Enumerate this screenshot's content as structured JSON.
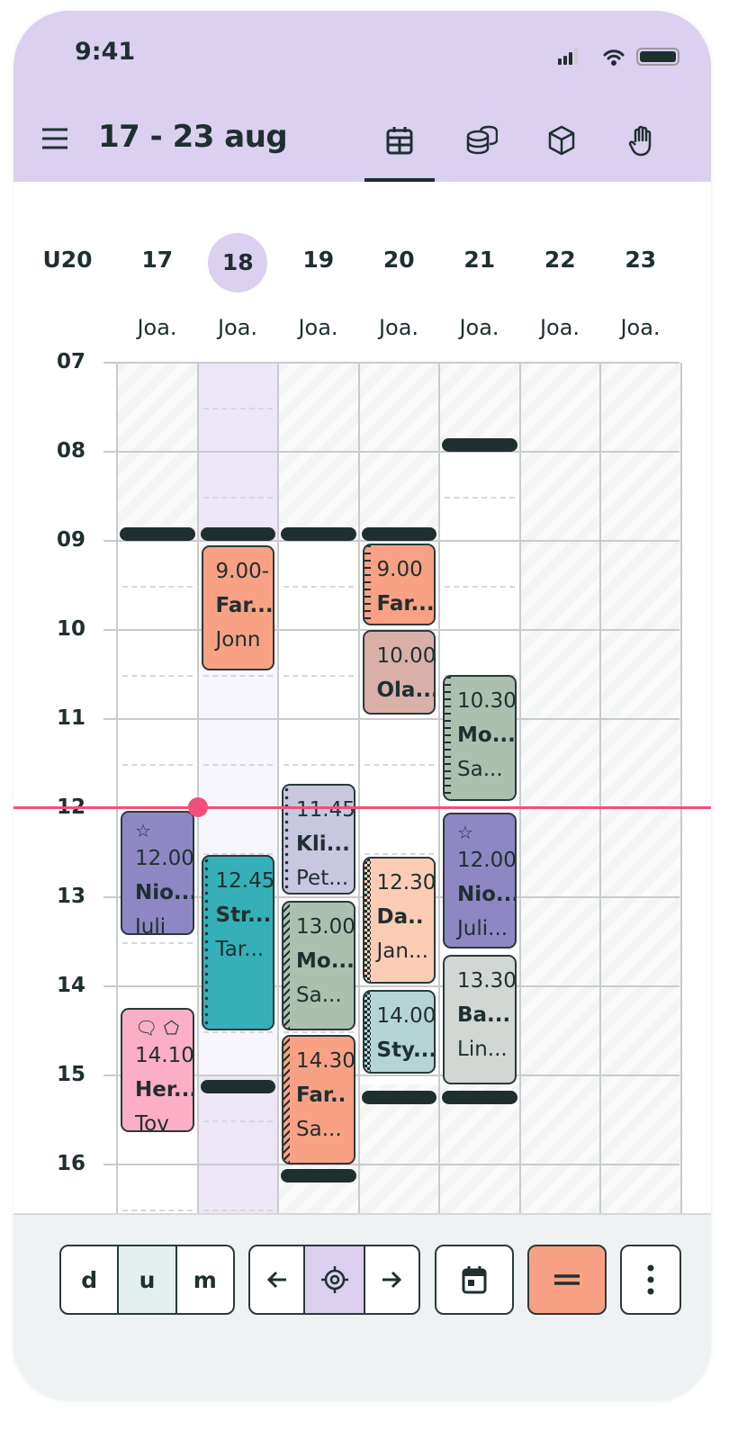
{
  "status_bar": {
    "time": "9:41"
  },
  "header": {
    "title": "17 - 23 aug",
    "nav_icons": [
      "calendar-grid-icon",
      "coins-icon",
      "box-icon",
      "hand-icon"
    ],
    "active_nav": 0
  },
  "week": {
    "label": "U20",
    "days": [
      "17",
      "18",
      "19",
      "20",
      "21",
      "22",
      "23"
    ],
    "selected_day": 1,
    "owners": [
      "Joa.",
      "Joa.",
      "Joa.",
      "Joa.",
      "Joa.",
      "Joa.",
      "Joa."
    ]
  },
  "hours": [
    "07",
    "08",
    "09",
    "10",
    "11",
    "12",
    "13",
    "14",
    "15",
    "16"
  ],
  "current_time": 11.99,
  "colors": {
    "header": "#dbd0ef",
    "now_line": "#ef4f7a",
    "salmon": "#f9a184",
    "purple": "#8e87c4",
    "teal": "#35b0b8"
  },
  "events": [
    {
      "day": 1,
      "start": 9.05,
      "end": 10.45,
      "time": "9.00-",
      "name": "Far...",
      "person": "Jonn",
      "color": "#f9a184"
    },
    {
      "day": 3,
      "start": 9.03,
      "end": 9.95,
      "time": "9.00",
      "name": "Far...",
      "person": "",
      "color": "#f9a184",
      "edge": "ruler"
    },
    {
      "day": 3,
      "start": 10.0,
      "end": 10.95,
      "time": "10.00",
      "name": "Ola...",
      "person": "",
      "color": "#d9b0a8"
    },
    {
      "day": 4,
      "start": 10.5,
      "end": 11.92,
      "time": "10.30",
      "name": "Mo...",
      "person": "Sa...",
      "color": "#adc0b0",
      "edge": "ruler"
    },
    {
      "day": 0,
      "start": 12.03,
      "end": 13.42,
      "time": "12.00",
      "name": "Nio...",
      "person": "Juli",
      "color": "#8e87c4",
      "icons": [
        "star-icon"
      ]
    },
    {
      "day": 1,
      "start": 12.53,
      "end": 14.5,
      "time": "12.45",
      "name": "Str...",
      "person": "Tar...",
      "color": "#35b0b8",
      "edge": "dots"
    },
    {
      "day": 2,
      "start": 11.73,
      "end": 12.97,
      "time": "11.45",
      "name": "Kli...",
      "person": "Pet...",
      "color": "#c9c6e0",
      "edge": "dots"
    },
    {
      "day": 2,
      "start": 13.04,
      "end": 14.5,
      "time": "13.00",
      "name": "Mo...",
      "person": "Sa...",
      "color": "#adc0b0",
      "edge": "hatch"
    },
    {
      "day": 2,
      "start": 14.55,
      "end": 16.0,
      "time": "14.30",
      "name": "Far..",
      "person": "Sa...",
      "color": "#f9a184",
      "edge": "hatch"
    },
    {
      "day": 3,
      "start": 12.55,
      "end": 13.97,
      "time": "12.30",
      "name": "Da..",
      "person": "Jan...",
      "color": "#fdccb5",
      "edge": "checker"
    },
    {
      "day": 3,
      "start": 14.04,
      "end": 14.98,
      "time": "14.00",
      "name": "Sty...",
      "person": "",
      "color": "#b5d4d5",
      "edge": "checker"
    },
    {
      "day": 4,
      "start": 12.05,
      "end": 13.58,
      "time": "12.00",
      "name": "Nio...",
      "person": "Juli...",
      "color": "#8e87c4",
      "icons": [
        "star-icon"
      ]
    },
    {
      "day": 4,
      "start": 13.65,
      "end": 15.1,
      "time": "13.30",
      "name": "Ba...",
      "person": "Lin...",
      "color": "#d2d7d3"
    },
    {
      "day": 0,
      "start": 14.24,
      "end": 15.64,
      "time": "14.10",
      "name": "Her...",
      "person": "Tov",
      "color": "#fbaec5",
      "icons": [
        "comment-icon",
        "tag-icon"
      ]
    }
  ],
  "toolbar": {
    "view_modes": [
      "d",
      "u",
      "m"
    ],
    "active_view": 1,
    "prev_icon": "arrow-left-icon",
    "today_icon": "target-icon",
    "next_icon": "arrow-right-icon",
    "calendar_icon": "calendar-icon",
    "menu_icon": "equals-icon",
    "more_icon": "more-vertical-icon"
  }
}
